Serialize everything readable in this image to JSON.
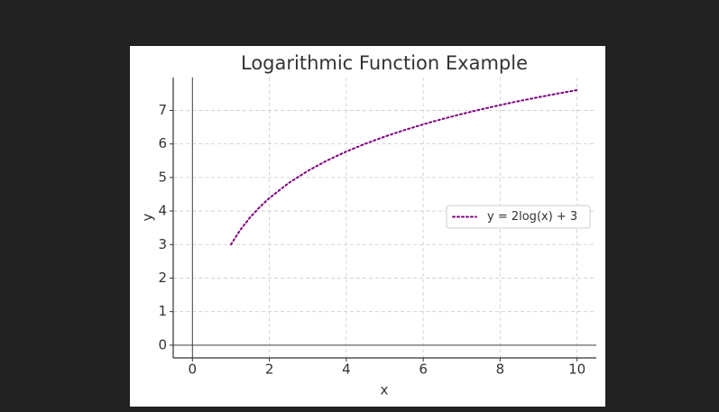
{
  "chart_data": {
    "type": "line",
    "title": "Logarithmic Function Example",
    "x_label": "x",
    "y_label": "y",
    "x": [
      1,
      1.25,
      1.5,
      1.75,
      2,
      2.5,
      3,
      3.5,
      4,
      4.5,
      5,
      5.5,
      6,
      6.5,
      7,
      7.5,
      8,
      8.5,
      9,
      9.5,
      10
    ],
    "series": [
      {
        "name": "y = 2log(x) + 3",
        "color": "#800080",
        "line_style": "dotted",
        "values": [
          3,
          3.446,
          3.811,
          4.119,
          4.386,
          4.833,
          5.197,
          5.506,
          5.773,
          6.008,
          6.219,
          6.409,
          6.584,
          6.744,
          6.892,
          7.03,
          7.159,
          7.28,
          7.394,
          7.503,
          7.605
        ]
      }
    ],
    "xlim": [
      -0.5,
      10.5
    ],
    "ylim": [
      -0.38,
      7.98
    ],
    "xticks": [
      0,
      2,
      4,
      6,
      8,
      10
    ],
    "yticks": [
      0,
      1,
      2,
      3,
      4,
      5,
      6,
      7
    ],
    "hlines": [
      0
    ],
    "vlines": [
      0
    ],
    "grid": true,
    "legend_position": "right"
  }
}
